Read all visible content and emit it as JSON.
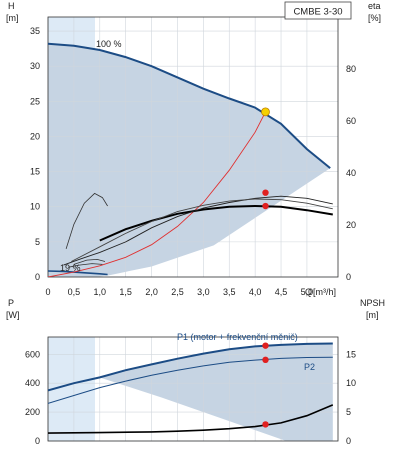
{
  "chart_data": [
    {
      "type": "line",
      "title": "CMBE 3-30",
      "ylabel": "H",
      "yunit": "[m]",
      "y2label": "eta",
      "y2unit": "[%]",
      "xlabel": "Q",
      "xunit": "[m³/h]",
      "xlim": [
        0,
        5.6
      ],
      "ylim": [
        0,
        37
      ],
      "y2lim": [
        0,
        100
      ],
      "x_ticks": [
        "0",
        "0,5",
        "1,0",
        "1,5",
        "2,0",
        "2,5",
        "3,0",
        "3,5",
        "4,0",
        "4,5",
        "5,0"
      ],
      "y_ticks": [
        "0",
        "5",
        "10",
        "15",
        "20",
        "25",
        "30",
        "35"
      ],
      "y2_ticks": [
        "0",
        "20",
        "40",
        "60",
        "80"
      ],
      "grid": true,
      "annotations": {
        "max_speed": "100 %",
        "min_speed": "19 %"
      },
      "series": [
        {
          "values": [
            [
              0,
              33.2
            ],
            [
              0.5,
              32.9
            ],
            [
              1.0,
              32.3
            ],
            [
              1.5,
              31.3
            ],
            [
              2.0,
              30.0
            ],
            [
              2.5,
              28.4
            ],
            [
              3.0,
              26.8
            ],
            [
              3.5,
              25.4
            ],
            [
              4.0,
              24.1
            ],
            [
              4.5,
              21.8
            ],
            [
              5.0,
              18.2
            ],
            [
              5.45,
              15.5
            ]
          ]
        },
        {
          "values": [
            [
              0,
              0.85
            ],
            [
              0.3,
              0.8
            ],
            [
              0.6,
              0.65
            ],
            [
              1.0,
              0.45
            ],
            [
              1.15,
              0.35
            ]
          ]
        },
        {
          "values": [
            [
              0,
              0
            ],
            [
              0.5,
              0.7
            ],
            [
              1.0,
              1.6
            ],
            [
              1.5,
              2.8
            ],
            [
              2.0,
              4.6
            ],
            [
              2.5,
              7.2
            ],
            [
              3.0,
              10.6
            ],
            [
              3.5,
              15.2
            ],
            [
              4.0,
              20.6
            ],
            [
              4.2,
              23.5
            ]
          ]
        },
        {
          "values": [
            [
              1.0,
              5.2
            ],
            [
              1.5,
              6.8
            ],
            [
              2.0,
              8.0
            ],
            [
              2.5,
              9.0
            ],
            [
              3.0,
              9.6
            ],
            [
              3.5,
              10.0
            ],
            [
              4.0,
              10.1
            ],
            [
              4.5,
              10.0
            ],
            [
              5.0,
              9.5
            ],
            [
              5.5,
              8.9
            ]
          ]
        },
        {
          "values": [
            [
              0.3,
              1.7
            ],
            [
              0.6,
              2.5
            ],
            [
              1.0,
              3.5
            ],
            [
              1.5,
              5.0
            ],
            [
              2.0,
              7.0
            ],
            [
              2.5,
              8.6
            ],
            [
              3.0,
              9.8
            ],
            [
              3.5,
              10.6
            ],
            [
              4.0,
              11.2
            ],
            [
              4.5,
              11.5
            ],
            [
              5.0,
              11.2
            ],
            [
              5.5,
              10.4
            ]
          ]
        },
        {
          "values": [
            [
              0.45,
              2.2
            ],
            [
              1.0,
              4.3
            ],
            [
              1.5,
              6.2
            ],
            [
              2.0,
              7.9
            ],
            [
              2.5,
              9.3
            ],
            [
              3.0,
              10.2
            ],
            [
              3.5,
              10.8
            ],
            [
              4.0,
              11.1
            ],
            [
              4.5,
              11.0
            ],
            [
              5.0,
              10.5
            ],
            [
              5.5,
              9.7
            ]
          ]
        }
      ],
      "small_curves": [
        {
          "values": [
            [
              0.35,
              4.0
            ],
            [
              0.5,
              7.5
            ],
            [
              0.7,
              10.5
            ],
            [
              0.9,
              11.9
            ],
            [
              1.05,
              11.3
            ],
            [
              1.15,
              10.1
            ]
          ]
        },
        {
          "values": [
            [
              0.5,
              1.8
            ],
            [
              0.75,
              2.4
            ],
            [
              0.95,
              2.5
            ],
            [
              1.1,
              2.2
            ]
          ]
        },
        {
          "values": [
            [
              0.4,
              1.4
            ],
            [
              0.6,
              1.7
            ],
            [
              0.85,
              1.9
            ],
            [
              1.05,
              1.8
            ]
          ]
        }
      ],
      "duty_point": {
        "x": 4.2,
        "y": 23.5
      },
      "markers": [
        {
          "x": 4.2,
          "y": 12.0
        },
        {
          "x": 4.2,
          "y": 10.1
        }
      ]
    },
    {
      "type": "line",
      "ylabel": "P",
      "yunit": "[W]",
      "y2label": "NPSH",
      "y2unit": "[m]",
      "xlim": [
        0,
        5.6
      ],
      "ylim": [
        0,
        720
      ],
      "y2lim": [
        0,
        18
      ],
      "y_ticks": [
        "0",
        "200",
        "400",
        "600"
      ],
      "y2_ticks": [
        "0",
        "5",
        "10",
        "15"
      ],
      "grid": true,
      "series": [
        {
          "name": "P1 (motor + frekvenční měnič)",
          "values": [
            [
              0,
              350
            ],
            [
              0.5,
              400
            ],
            [
              1.0,
              440
            ],
            [
              1.5,
              490
            ],
            [
              2.0,
              530
            ],
            [
              2.5,
              570
            ],
            [
              3.0,
              605
            ],
            [
              3.5,
              635
            ],
            [
              4.0,
              655
            ],
            [
              4.5,
              665
            ],
            [
              5.0,
              672
            ],
            [
              5.5,
              675
            ]
          ]
        },
        {
          "name": "P2",
          "values": [
            [
              0,
              260
            ],
            [
              0.5,
              315
            ],
            [
              1.0,
              370
            ],
            [
              1.5,
              415
            ],
            [
              2.0,
              455
            ],
            [
              2.5,
              490
            ],
            [
              3.0,
              520
            ],
            [
              3.5,
              545
            ],
            [
              4.0,
              560
            ],
            [
              4.5,
              572
            ],
            [
              5.0,
              578
            ],
            [
              5.5,
              580
            ]
          ]
        },
        {
          "values": [
            [
              0,
              55
            ],
            [
              1.0,
              58
            ],
            [
              2.0,
              63
            ],
            [
              2.5,
              68
            ],
            [
              3.0,
              75
            ],
            [
              3.5,
              85
            ],
            [
              4.0,
              100
            ],
            [
              4.5,
              125
            ],
            [
              5.0,
              175
            ],
            [
              5.5,
              250
            ]
          ]
        }
      ],
      "markers": [
        {
          "x": 4.2,
          "y": 660
        },
        {
          "x": 4.2,
          "y": 562
        },
        {
          "x": 4.2,
          "y": 115
        }
      ]
    }
  ]
}
